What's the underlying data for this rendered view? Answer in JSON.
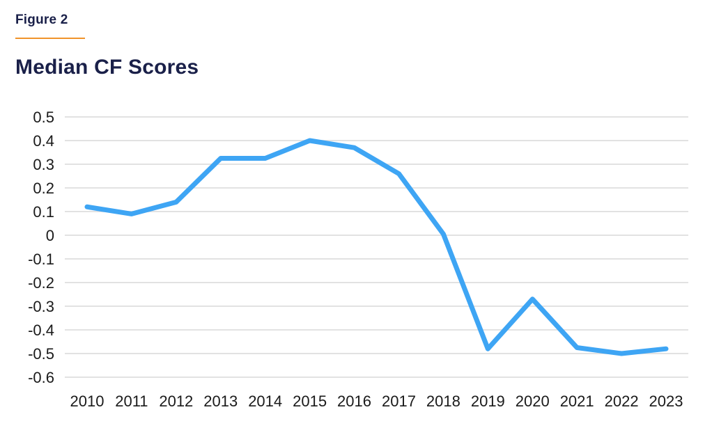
{
  "header": {
    "figure_label": "Figure 2",
    "title": "Median CF Scores"
  },
  "colors": {
    "heading": "#1a2049",
    "accent_rule": "#f0932a",
    "line": "#3ea5f4",
    "grid": "#e2e2e2",
    "tick_text": "#1a1a1a",
    "background": "#ffffff"
  },
  "chart_data": {
    "type": "line",
    "title": "Median CF Scores",
    "xlabel": "",
    "ylabel": "",
    "categories": [
      "2010",
      "2011",
      "2012",
      "2013",
      "2014",
      "2015",
      "2016",
      "2017",
      "2018",
      "2019",
      "2020",
      "2021",
      "2022",
      "2023"
    ],
    "values": [
      0.12,
      0.09,
      0.14,
      0.325,
      0.325,
      0.4,
      0.37,
      0.26,
      0.005,
      -0.48,
      -0.27,
      -0.475,
      -0.5,
      -0.48
    ],
    "ylim": [
      -0.6,
      0.5
    ],
    "ytick_step": 0.1,
    "yticks": [
      0.5,
      0.4,
      0.3,
      0.2,
      0.1,
      0,
      -0.1,
      -0.2,
      -0.3,
      -0.4,
      -0.5,
      -0.6
    ],
    "ytick_labels": [
      "0.5",
      "0.4",
      "0.3",
      "0.2",
      "0.1",
      "0",
      "-0.1",
      "-0.2",
      "-0.3",
      "-0.4",
      "-0.5",
      "-0.6"
    ],
    "grid": "horizontal",
    "legend": "none"
  }
}
